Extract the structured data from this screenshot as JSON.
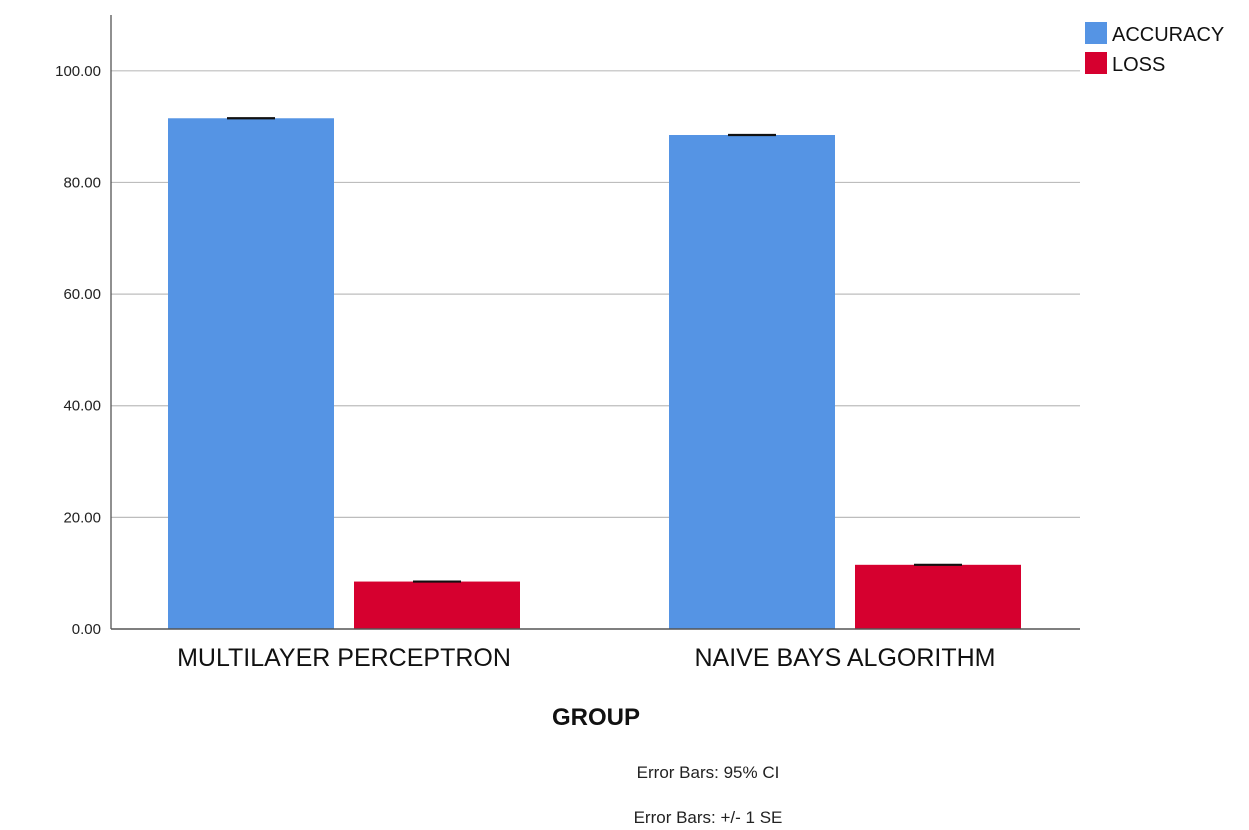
{
  "chart_data": {
    "type": "bar",
    "categories": [
      "MULTILAYER PERCEPTRON",
      "NAIVE BAYS ALGORITHM"
    ],
    "series": [
      {
        "name": "ACCURACY",
        "color": "#5594e4",
        "values": [
          91.5,
          88.5
        ],
        "error": [
          0.15,
          0.15
        ]
      },
      {
        "name": "LOSS",
        "color": "#d6002f",
        "values": [
          8.5,
          11.5
        ],
        "error": [
          0.15,
          0.15
        ]
      }
    ],
    "xlabel": "GROUP",
    "ylabel": "",
    "ylim": [
      0,
      110
    ],
    "yticks": [
      0,
      20,
      40,
      60,
      80,
      100
    ],
    "ytick_labels": [
      "0.00",
      "20.00",
      "40.00",
      "60.00",
      "80.00",
      "100.00"
    ],
    "grid": "horizontal",
    "legend_position": "top-right",
    "footnotes": [
      "Error Bars: 95% CI",
      "Error Bars: +/- 1 SE"
    ]
  }
}
